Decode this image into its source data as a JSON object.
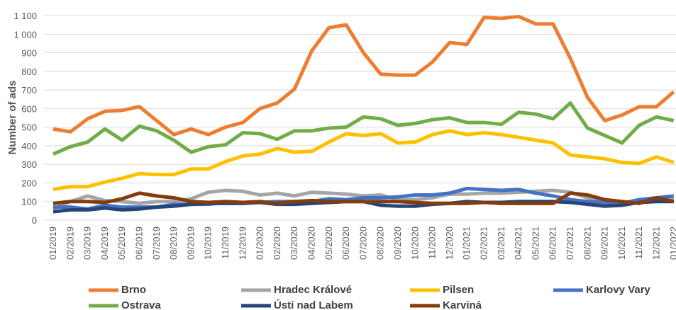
{
  "chart_data": {
    "type": "line",
    "y_label": "Number of ads",
    "categories": [
      "01/2019",
      "02/2019",
      "03/2019",
      "04/2019",
      "05/2019",
      "06/2019",
      "07/2019",
      "08/2019",
      "09/2019",
      "10/2019",
      "11/2019",
      "12/2019",
      "01/2020",
      "02/2020",
      "03/2020",
      "04/2020",
      "05/2020",
      "06/2020",
      "07/2020",
      "08/2020",
      "09/2020",
      "10/2020",
      "11/2020",
      "12/2020",
      "01/2021",
      "02/2021",
      "03/2021",
      "04/2021",
      "05/2021",
      "06/2021",
      "07/2021",
      "08/2021",
      "09/2021",
      "10/2021",
      "11/2021",
      "12/2021",
      "01/2022"
    ],
    "ylim": [
      0,
      1100
    ],
    "yticks": [
      0,
      100,
      200,
      300,
      400,
      500,
      600,
      700,
      800,
      900,
      {
        "value": 1000,
        "label": "1 000"
      },
      {
        "value": 1100,
        "label": "1 100"
      }
    ],
    "grid": true,
    "series": [
      {
        "name": "Brno",
        "color": "#ed7d31",
        "values": [
          490,
          475,
          545,
          585,
          590,
          610,
          535,
          460,
          490,
          460,
          500,
          525,
          600,
          630,
          705,
          910,
          1035,
          1050,
          900,
          785,
          780,
          780,
          850,
          955,
          945,
          1090,
          1085,
          1095,
          1055,
          1055,
          870,
          660,
          535,
          565,
          610,
          610,
          690
        ]
      },
      {
        "name": "Hradec Králové",
        "color": "#a5a5a5",
        "values": [
          60,
          100,
          130,
          105,
          100,
          90,
          100,
          100,
          115,
          150,
          160,
          155,
          135,
          145,
          130,
          150,
          145,
          140,
          130,
          135,
          110,
          110,
          120,
          140,
          140,
          145,
          145,
          150,
          155,
          160,
          150,
          120,
          100,
          95,
          95,
          115,
          120
        ]
      },
      {
        "name": "Pilsen",
        "color": "#ffc000",
        "values": [
          165,
          180,
          180,
          205,
          225,
          250,
          245,
          245,
          275,
          275,
          315,
          345,
          355,
          385,
          365,
          370,
          420,
          465,
          455,
          465,
          415,
          420,
          460,
          480,
          460,
          470,
          460,
          445,
          430,
          415,
          350,
          340,
          330,
          310,
          305,
          340,
          310
        ]
      },
      {
        "name": "Karlovy Vary",
        "color": "#4472c4",
        "values": [
          70,
          70,
          60,
          80,
          70,
          70,
          70,
          85,
          85,
          85,
          95,
          95,
          95,
          100,
          100,
          100,
          115,
          110,
          120,
          120,
          125,
          135,
          135,
          145,
          170,
          165,
          160,
          165,
          145,
          130,
          110,
          100,
          95,
          90,
          110,
          120,
          130
        ]
      },
      {
        "name": "Ostrava",
        "color": "#70ad47",
        "values": [
          355,
          395,
          420,
          490,
          430,
          505,
          480,
          430,
          365,
          395,
          405,
          470,
          465,
          435,
          480,
          480,
          495,
          500,
          555,
          545,
          510,
          520,
          540,
          550,
          525,
          525,
          515,
          580,
          570,
          545,
          630,
          495,
          455,
          415,
          510,
          555,
          535
        ]
      },
      {
        "name": "Ústí nad Labem",
        "color": "#264478",
        "values": [
          45,
          55,
          55,
          65,
          55,
          60,
          70,
          75,
          85,
          90,
          90,
          90,
          95,
          85,
          85,
          90,
          95,
          100,
          100,
          80,
          75,
          75,
          85,
          90,
          100,
          95,
          95,
          100,
          100,
          100,
          95,
          85,
          75,
          80,
          95,
          100,
          100
        ]
      },
      {
        "name": "Karviná",
        "color": "#843c0c",
        "values": [
          90,
          100,
          100,
          95,
          115,
          145,
          130,
          120,
          100,
          95,
          100,
          95,
          100,
          90,
          100,
          105,
          100,
          100,
          100,
          100,
          100,
          95,
          90,
          90,
          90,
          95,
          90,
          90,
          90,
          90,
          145,
          135,
          110,
          100,
          90,
          120,
          100
        ]
      }
    ]
  }
}
